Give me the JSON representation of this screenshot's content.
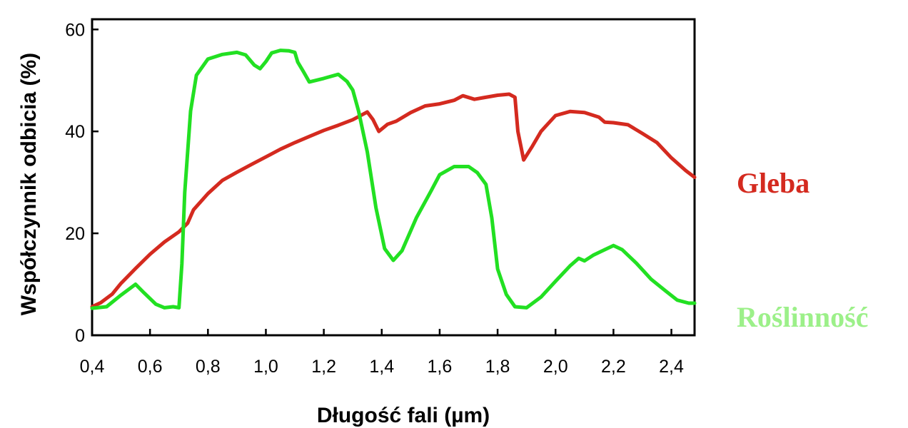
{
  "chart_data": {
    "type": "line",
    "xlabel": "Długość fali (µm)",
    "ylabel": "Współczynnik odbicia (%)",
    "xlim": [
      0.4,
      2.48
    ],
    "ylim": [
      0,
      62
    ],
    "x_ticks": [
      {
        "value": 0.4,
        "label": "0,4"
      },
      {
        "value": 0.6,
        "label": "0,6"
      },
      {
        "value": 0.8,
        "label": "0,8"
      },
      {
        "value": 1.0,
        "label": "1,0"
      },
      {
        "value": 1.2,
        "label": "1,2"
      },
      {
        "value": 1.4,
        "label": "1,4"
      },
      {
        "value": 1.6,
        "label": "1,6"
      },
      {
        "value": 1.8,
        "label": "1,8"
      },
      {
        "value": 2.0,
        "label": "2,0"
      },
      {
        "value": 2.2,
        "label": "2,2"
      },
      {
        "value": 2.4,
        "label": "2,4"
      }
    ],
    "y_ticks": [
      {
        "value": 0,
        "label": "0"
      },
      {
        "value": 20,
        "label": "20"
      },
      {
        "value": 40,
        "label": "40"
      },
      {
        "value": 60,
        "label": "60"
      }
    ],
    "grid": false,
    "legend_position": "right",
    "series": [
      {
        "name": "Gleba",
        "color": "#d42a1f",
        "points": [
          [
            0.4,
            5.6
          ],
          [
            0.43,
            6.4
          ],
          [
            0.47,
            8.1
          ],
          [
            0.5,
            10.2
          ],
          [
            0.55,
            13.1
          ],
          [
            0.6,
            15.9
          ],
          [
            0.65,
            18.3
          ],
          [
            0.7,
            20.3
          ],
          [
            0.73,
            22.0
          ],
          [
            0.75,
            24.6
          ],
          [
            0.8,
            27.8
          ],
          [
            0.85,
            30.4
          ],
          [
            0.9,
            32.0
          ],
          [
            0.95,
            33.5
          ],
          [
            1.0,
            35.0
          ],
          [
            1.05,
            36.5
          ],
          [
            1.1,
            37.8
          ],
          [
            1.15,
            39.0
          ],
          [
            1.2,
            40.2
          ],
          [
            1.25,
            41.2
          ],
          [
            1.3,
            42.3
          ],
          [
            1.35,
            43.8
          ],
          [
            1.37,
            42.3
          ],
          [
            1.39,
            40.0
          ],
          [
            1.42,
            41.4
          ],
          [
            1.45,
            42.0
          ],
          [
            1.5,
            43.7
          ],
          [
            1.55,
            45.0
          ],
          [
            1.6,
            45.4
          ],
          [
            1.65,
            46.1
          ],
          [
            1.68,
            47.0
          ],
          [
            1.72,
            46.3
          ],
          [
            1.75,
            46.6
          ],
          [
            1.8,
            47.1
          ],
          [
            1.84,
            47.3
          ],
          [
            1.86,
            46.7
          ],
          [
            1.87,
            40.0
          ],
          [
            1.89,
            34.4
          ],
          [
            1.92,
            37.1
          ],
          [
            1.95,
            40.0
          ],
          [
            2.0,
            43.1
          ],
          [
            2.05,
            43.9
          ],
          [
            2.1,
            43.7
          ],
          [
            2.15,
            42.8
          ],
          [
            2.17,
            41.8
          ],
          [
            2.2,
            41.7
          ],
          [
            2.25,
            41.3
          ],
          [
            2.3,
            39.6
          ],
          [
            2.35,
            37.8
          ],
          [
            2.4,
            34.8
          ],
          [
            2.45,
            32.3
          ],
          [
            2.48,
            31.0
          ]
        ]
      },
      {
        "name": "Roślinność",
        "color": "#22e022",
        "points": [
          [
            0.4,
            5.3
          ],
          [
            0.45,
            5.6
          ],
          [
            0.5,
            7.9
          ],
          [
            0.55,
            10.0
          ],
          [
            0.58,
            8.3
          ],
          [
            0.62,
            6.1
          ],
          [
            0.65,
            5.4
          ],
          [
            0.68,
            5.6
          ],
          [
            0.7,
            5.4
          ],
          [
            0.71,
            14.0
          ],
          [
            0.72,
            28.0
          ],
          [
            0.74,
            44.0
          ],
          [
            0.76,
            51.0
          ],
          [
            0.8,
            54.2
          ],
          [
            0.85,
            55.1
          ],
          [
            0.9,
            55.5
          ],
          [
            0.93,
            55.0
          ],
          [
            0.96,
            53.0
          ],
          [
            0.98,
            52.3
          ],
          [
            1.0,
            53.7
          ],
          [
            1.02,
            55.4
          ],
          [
            1.05,
            55.9
          ],
          [
            1.08,
            55.8
          ],
          [
            1.1,
            55.5
          ],
          [
            1.11,
            53.6
          ],
          [
            1.13,
            51.7
          ],
          [
            1.15,
            49.7
          ],
          [
            1.2,
            50.4
          ],
          [
            1.25,
            51.2
          ],
          [
            1.28,
            49.8
          ],
          [
            1.3,
            48.1
          ],
          [
            1.32,
            44.0
          ],
          [
            1.35,
            36.0
          ],
          [
            1.38,
            25.0
          ],
          [
            1.41,
            17.0
          ],
          [
            1.44,
            14.7
          ],
          [
            1.47,
            16.6
          ],
          [
            1.52,
            23.1
          ],
          [
            1.57,
            28.3
          ],
          [
            1.6,
            31.5
          ],
          [
            1.65,
            33.1
          ],
          [
            1.7,
            33.1
          ],
          [
            1.73,
            31.9
          ],
          [
            1.76,
            29.6
          ],
          [
            1.78,
            23.0
          ],
          [
            1.8,
            13.0
          ],
          [
            1.83,
            8.0
          ],
          [
            1.86,
            5.6
          ],
          [
            1.9,
            5.4
          ],
          [
            1.95,
            7.5
          ],
          [
            2.0,
            10.6
          ],
          [
            2.05,
            13.6
          ],
          [
            2.08,
            15.1
          ],
          [
            2.1,
            14.6
          ],
          [
            2.13,
            15.7
          ],
          [
            2.17,
            16.8
          ],
          [
            2.2,
            17.6
          ],
          [
            2.23,
            16.8
          ],
          [
            2.28,
            14.1
          ],
          [
            2.33,
            11.0
          ],
          [
            2.38,
            8.7
          ],
          [
            2.42,
            6.9
          ],
          [
            2.46,
            6.3
          ],
          [
            2.48,
            6.3
          ]
        ]
      }
    ]
  }
}
